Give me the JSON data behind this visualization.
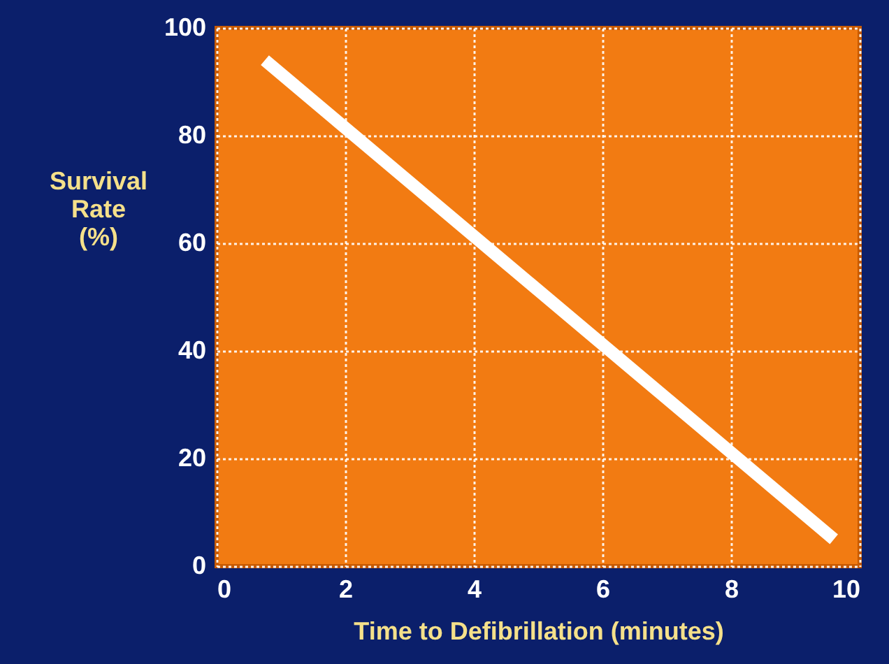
{
  "chart_data": {
    "type": "line",
    "xlabel": "Time to Defibrillation (minutes)",
    "ylabel": "Survival Rate (%)",
    "x": [
      0.75,
      9.6
    ],
    "series": [
      {
        "color": "#ffffff",
        "values": [
          94,
          5
        ]
      }
    ],
    "xlim": [
      0,
      10
    ],
    "xticks": [
      0,
      2,
      4,
      6,
      8,
      10
    ],
    "ylim": [
      0,
      100
    ],
    "yticks": [
      0,
      20,
      40,
      60,
      80,
      100
    ],
    "grid": true,
    "line_style": "solid",
    "marker": "none"
  }
}
